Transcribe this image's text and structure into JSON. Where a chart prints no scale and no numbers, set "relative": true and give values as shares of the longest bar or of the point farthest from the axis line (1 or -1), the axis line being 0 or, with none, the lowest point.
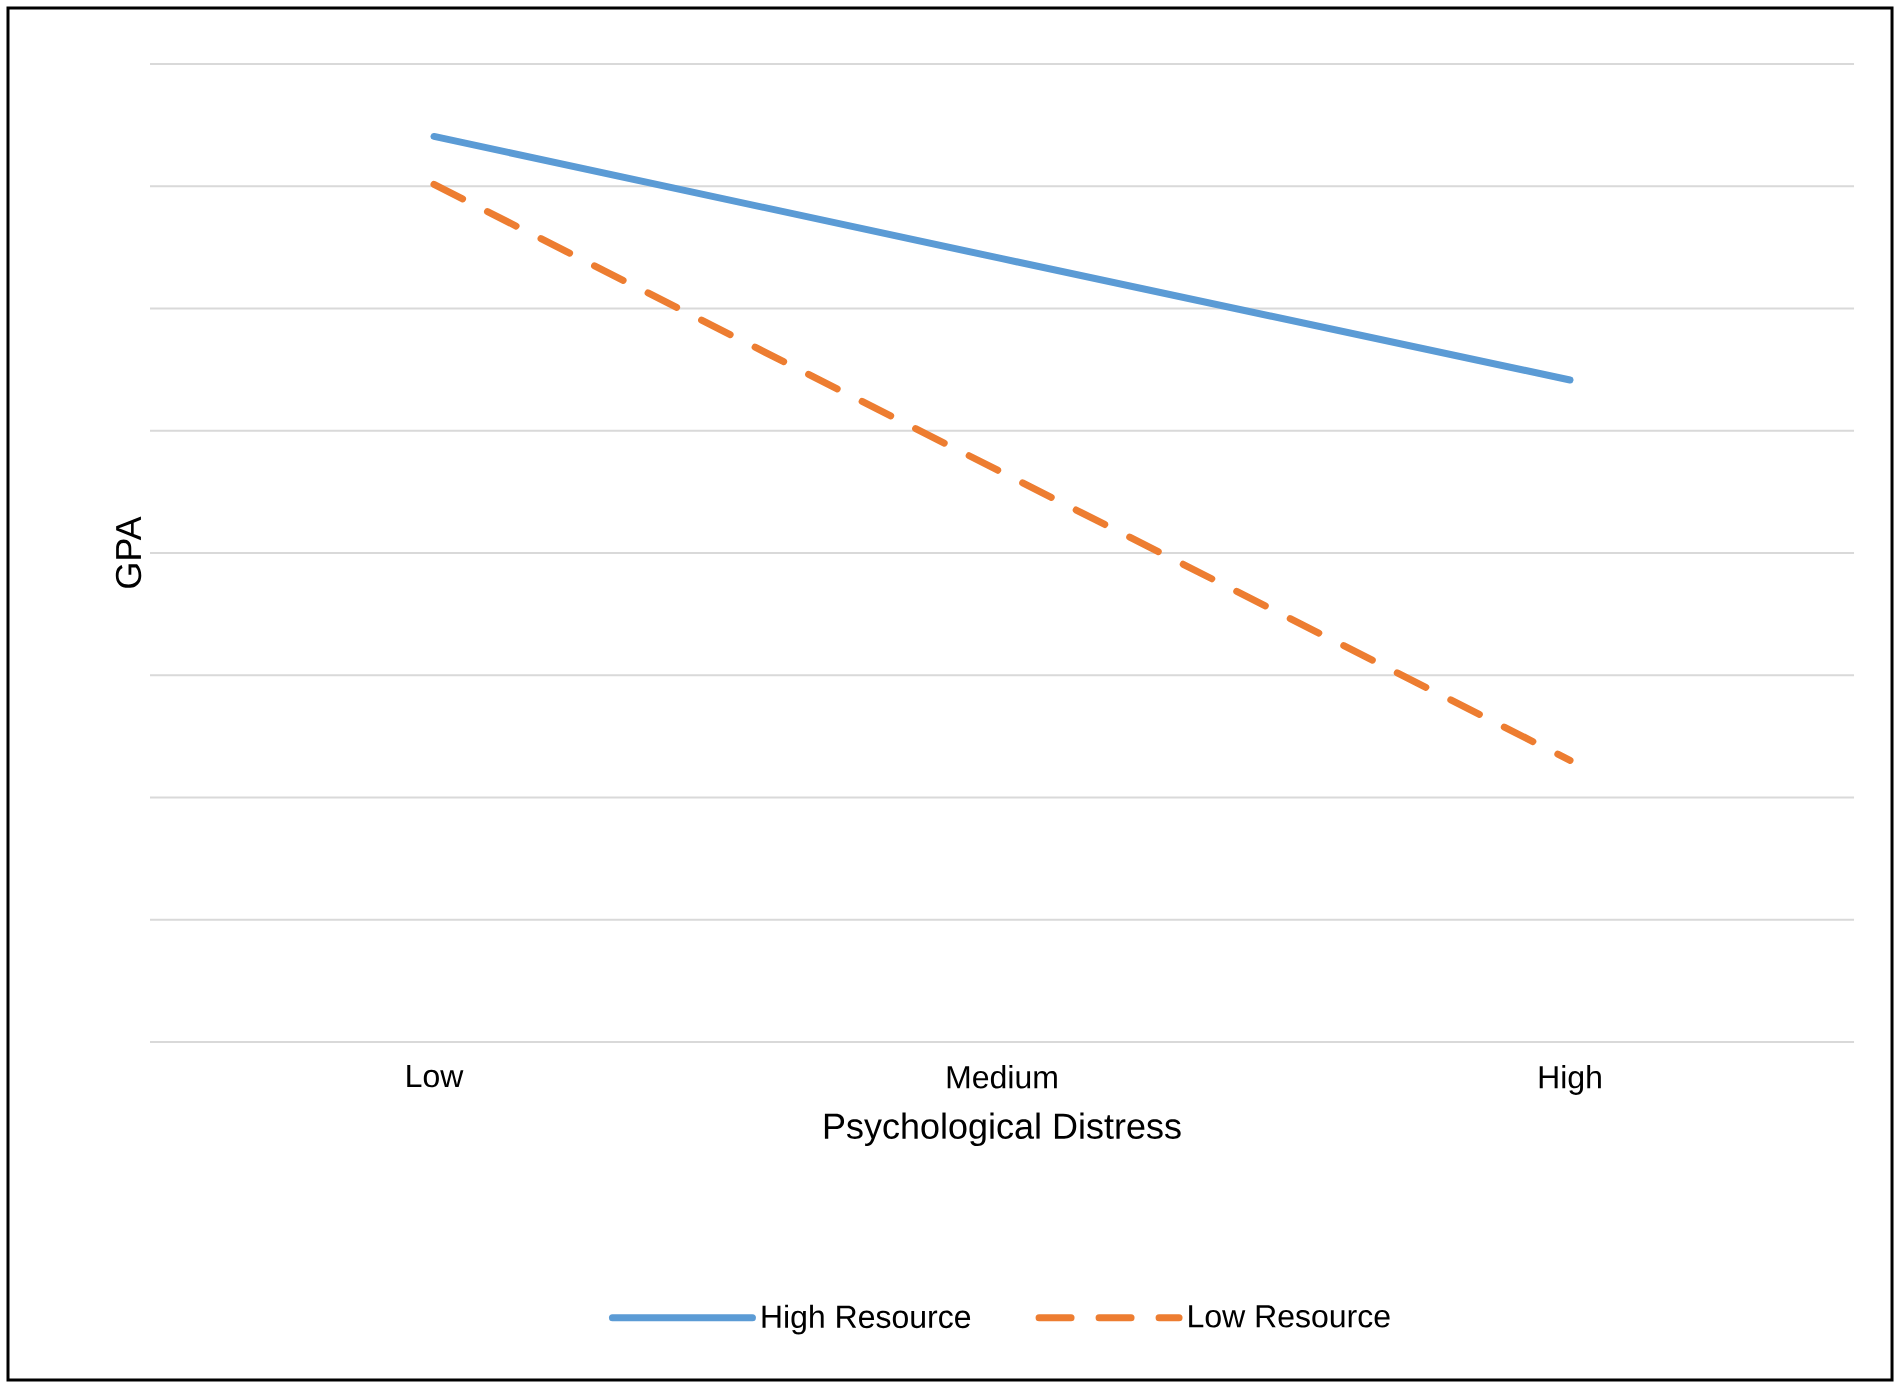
{
  "chart_data": {
    "type": "line",
    "xlabel": "Psychological Distress",
    "ylabel": "GPA",
    "categories": [
      "Low",
      "Medium",
      "High"
    ],
    "relative": true,
    "grid": "y",
    "legend": "bottom",
    "series": [
      {
        "name": "High Resource",
        "color": "#5b9bd5",
        "line_style": "solid",
        "values": [
          1,
          0.865,
          0.731
        ]
      },
      {
        "name": "Low Resource",
        "color": "#ed7d31",
        "line_style": "dashed",
        "values": [
          0.947,
          0.629,
          0.311
        ]
      }
    ]
  }
}
